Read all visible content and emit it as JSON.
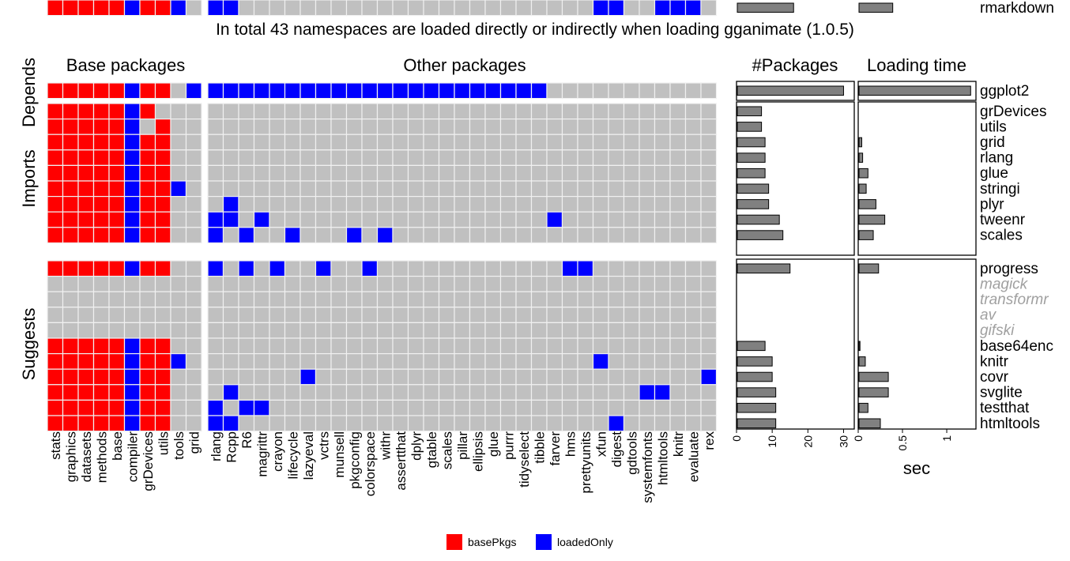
{
  "chart_data": {
    "type": "heatmap",
    "title": "In total 43 namespaces are loaded directly or indirectly when loading gganimate (1.0.5)",
    "panels": {
      "base_title": "Base packages",
      "other_title": "Other packages",
      "count_title": "#Packages",
      "time_title": "Loading time"
    },
    "groups": [
      "Depends",
      "Imports",
      "Suggests"
    ],
    "group_rows": [
      [
        0,
        1
      ],
      [
        1,
        10
      ],
      [
        10,
        21
      ]
    ],
    "rows": [
      "ggplot2",
      "grDevices",
      "utils",
      "grid",
      "rlang",
      "glue",
      "stringi",
      "plyr",
      "tweenr",
      "scales",
      "progress",
      "magick",
      "transformr",
      "av",
      "gifski",
      "base64enc",
      "knitr",
      "covr",
      "svglite",
      "testthat",
      "htmltools",
      "rmarkdown"
    ],
    "unavailable_rows": [
      "magick",
      "transformr",
      "av",
      "gifski"
    ],
    "base_columns": [
      "stats",
      "graphics",
      "datasets",
      "methods",
      "base",
      "compiler",
      "grDevices",
      "utils",
      "tools",
      "grid"
    ],
    "other_columns": [
      "rlang",
      "Rcpp",
      "R6",
      "magrittr",
      "crayon",
      "lifecycle",
      "lazyeval",
      "vctrs",
      "munsell",
      "pkgconfig",
      "colorspace",
      "withr",
      "assertthat",
      "dplyr",
      "gtable",
      "scales",
      "pillar",
      "ellipsis",
      "glue",
      "purrr",
      "tidyselect",
      "tibble",
      "farver",
      "hms",
      "prettyunits",
      "xfun",
      "digest",
      "gdtools",
      "systemfonts",
      "htmltools",
      "knitr",
      "evaluate",
      "rex"
    ],
    "base_matrix": [
      "RRRRRBRR.B",
      "RRRRRBR...",
      "RRRRRB.R..",
      "RRRRRBRR..",
      "RRRRRBRR..",
      "RRRRRBRR..",
      "RRRRRBRRB.",
      "RRRRRBRR..",
      "RRRRRBRR..",
      "RRRRRBRR..",
      "RRRRRBRR..",
      "..........",
      "..........",
      "..........",
      "..........",
      "RRRRRBRR..",
      "RRRRRBRRB.",
      "RRRRRBRR..",
      "RRRRRBRR..",
      "RRRRRBRR..",
      "RRRRRBRR..",
      "RRRRRBRRB."
    ],
    "other_matrix": [
      "BBBBBBBBBBBBBBBBBBBBBB...........",
      ".................................",
      ".................................",
      ".................................",
      ".................................",
      ".................................",
      ".................................",
      ".B...............................",
      "BB.B..................B..........",
      "B.B..B...B.B.....................",
      "B.B.B..B..B............BB........",
      ".................................",
      ".................................",
      ".................................",
      ".................................",
      ".................................",
      ".........................B.......",
      "......B.........................B",
      ".B..........................BB...",
      "B.BB.............................",
      "BB........................B......",
      "BB.......................BB..BBB."
    ],
    "n_packages": [
      30,
      7,
      7,
      8,
      8,
      8,
      9,
      9,
      12,
      13,
      15,
      0,
      0,
      0,
      0,
      8,
      10,
      10,
      11,
      11,
      11,
      16
    ],
    "n_packages_axis": {
      "ticks": [
        0,
        10,
        20,
        30
      ],
      "lim": [
        0,
        33
      ]
    },
    "loading_time_sec": [
      1.27,
      0,
      0,
      0.04,
      0.05,
      0.11,
      0.09,
      0.2,
      0.3,
      0.17,
      0.23,
      0,
      0,
      0,
      0,
      0.02,
      0.08,
      0.34,
      0.34,
      0.11,
      0.25,
      0.39
    ],
    "loading_time_axis": {
      "ticks": [
        0,
        0.5,
        1
      ],
      "tick_labels": [
        "0",
        "0.5",
        "1"
      ],
      "lim": [
        0,
        1.33
      ],
      "xlabel": "sec"
    },
    "legend": {
      "placement": "bottom",
      "items": [
        {
          "key": "R",
          "label": "basePkgs",
          "color": "#FF0000"
        },
        {
          "key": "B",
          "label": "loadedOnly",
          "color": "#0000FF"
        }
      ]
    },
    "colors": {
      "empty": "#C0C0C0",
      "bar": "#808080",
      "unavailable_label": "#A0A0A0",
      "text": "#000000",
      "tile_border": "#F0F0F0"
    }
  }
}
